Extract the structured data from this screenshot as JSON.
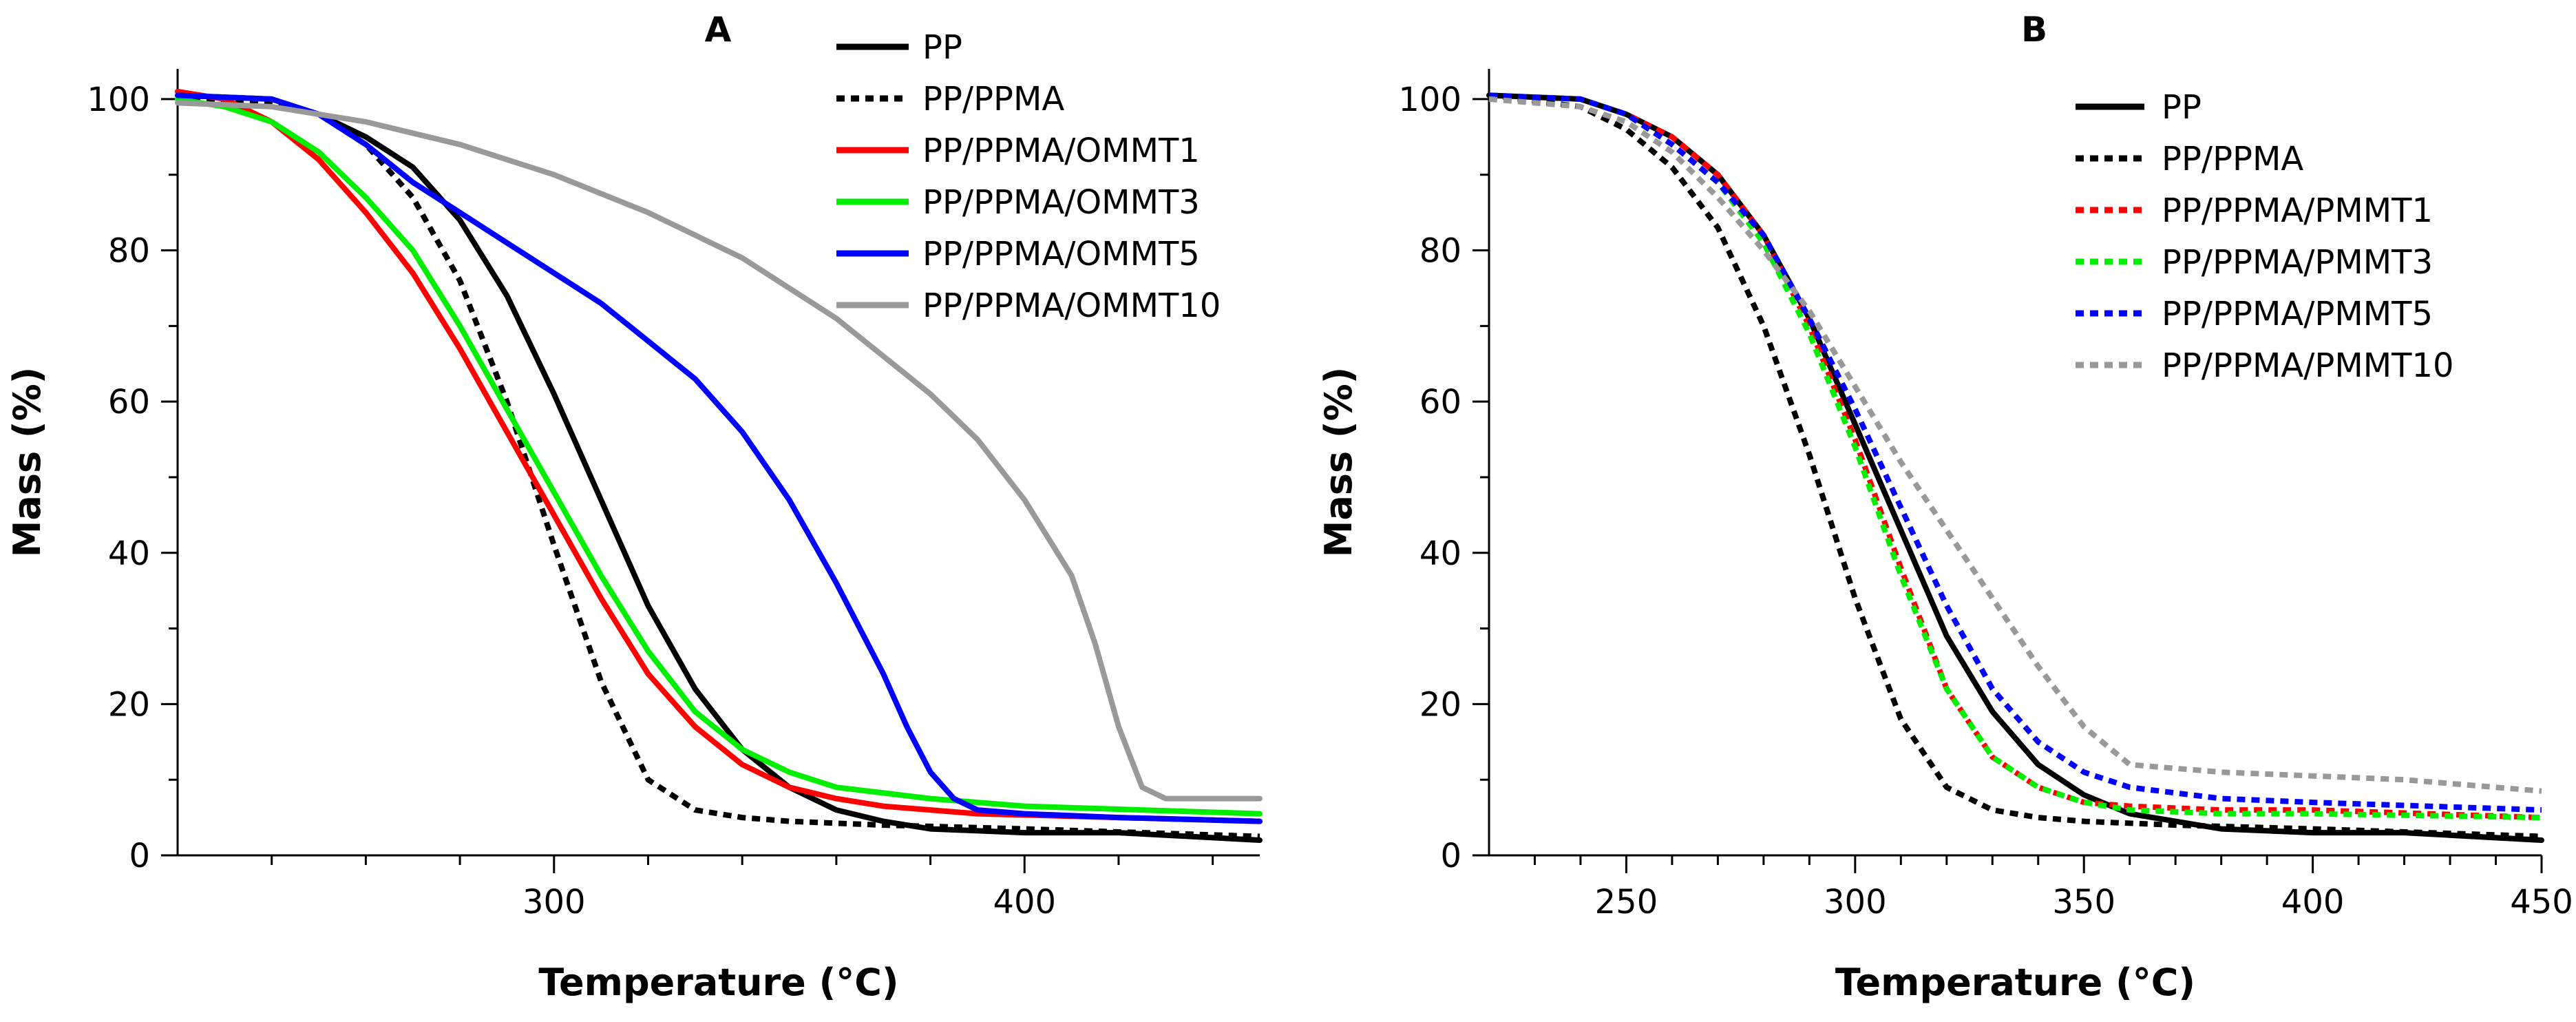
{
  "chart_data": [
    {
      "panel_label": "A",
      "type": "line",
      "xlabel": "Temperature (°C)",
      "ylabel": "Mass (%)",
      "xlim": [
        220,
        450
      ],
      "ylim": [
        0,
        104
      ],
      "xticks": [
        300,
        400
      ],
      "yticks": [
        0,
        20,
        40,
        60,
        80,
        100
      ],
      "grid": false,
      "legend": "top-right",
      "series": [
        {
          "name": "PP",
          "color": "#000000",
          "style": "solid",
          "x": [
            220,
            240,
            250,
            260,
            270,
            280,
            290,
            300,
            310,
            320,
            330,
            340,
            350,
            360,
            370,
            380,
            400,
            420,
            450
          ],
          "y": [
            100.5,
            100,
            98,
            95,
            91,
            84,
            74,
            61,
            47,
            33,
            22,
            14,
            9,
            6,
            4.5,
            3.5,
            3,
            3,
            2
          ]
        },
        {
          "name": "PP/PPMA",
          "color": "#000000",
          "style": "dotted",
          "x": [
            220,
            240,
            250,
            260,
            270,
            280,
            290,
            300,
            310,
            320,
            330,
            340,
            350,
            370,
            400,
            450
          ],
          "y": [
            100,
            99.5,
            98,
            94,
            87,
            76,
            60,
            41,
            23,
            10,
            6,
            5,
            4.5,
            4,
            3.5,
            2.5
          ]
        },
        {
          "name": "PP/PPMA/OMMT1",
          "color": "#ff0000",
          "style": "solid",
          "x": [
            220,
            230,
            240,
            250,
            260,
            270,
            280,
            290,
            300,
            310,
            320,
            330,
            340,
            350,
            360,
            370,
            390,
            420,
            450
          ],
          "y": [
            101,
            100,
            97,
            92,
            85,
            77,
            67,
            56,
            45,
            34,
            24,
            17,
            12,
            9,
            7.5,
            6.5,
            5.5,
            5,
            4.5
          ]
        },
        {
          "name": "PP/PPMA/OMMT3",
          "color": "#00ee00",
          "style": "solid",
          "x": [
            220,
            230,
            240,
            250,
            260,
            270,
            280,
            290,
            300,
            310,
            320,
            330,
            340,
            350,
            360,
            380,
            400,
            450
          ],
          "y": [
            100,
            99,
            97,
            93,
            87,
            80,
            70,
            59,
            48,
            37,
            27,
            19,
            14,
            11,
            9,
            7.5,
            6.5,
            5.5
          ]
        },
        {
          "name": "PP/PPMA/OMMT5",
          "color": "#0000ff",
          "style": "solid",
          "x": [
            220,
            240,
            250,
            260,
            270,
            280,
            290,
            300,
            310,
            320,
            330,
            340,
            350,
            360,
            370,
            375,
            380,
            385,
            390,
            400,
            420,
            450
          ],
          "y": [
            100.5,
            100,
            98,
            94,
            89,
            85,
            81,
            77,
            73,
            68,
            63,
            56,
            47,
            36,
            24,
            17,
            11,
            7.5,
            6,
            5.5,
            5,
            4.5
          ]
        },
        {
          "name": "PP/PPMA/OMMT10",
          "color": "#999999",
          "style": "solid",
          "x": [
            220,
            240,
            260,
            280,
            300,
            320,
            340,
            360,
            380,
            390,
            400,
            410,
            415,
            420,
            425,
            430,
            450
          ],
          "y": [
            99.5,
            99,
            97,
            94,
            90,
            85,
            79,
            71,
            61,
            55,
            47,
            37,
            28,
            17,
            9,
            7.5,
            7.5
          ]
        }
      ]
    },
    {
      "panel_label": "B",
      "type": "line",
      "xlabel": "Temperature (°C)",
      "ylabel": "Mass (%)",
      "xlim": [
        220,
        450
      ],
      "ylim": [
        0,
        104
      ],
      "xticks": [
        250,
        300,
        350,
        400,
        450
      ],
      "yticks": [
        0,
        20,
        40,
        60,
        80,
        100
      ],
      "grid": false,
      "legend": "top-right",
      "series": [
        {
          "name": "PP",
          "color": "#000000",
          "style": "solid",
          "x": [
            220,
            240,
            250,
            260,
            270,
            280,
            290,
            300,
            310,
            320,
            330,
            340,
            350,
            360,
            370,
            380,
            400,
            420,
            450
          ],
          "y": [
            100.5,
            100,
            98,
            95,
            90,
            82,
            71,
            57,
            43,
            29,
            19,
            12,
            8,
            5.5,
            4.5,
            3.5,
            3,
            3,
            2
          ]
        },
        {
          "name": "PP/PPMA",
          "color": "#000000",
          "style": "dotted",
          "x": [
            220,
            240,
            250,
            260,
            270,
            280,
            290,
            300,
            310,
            320,
            330,
            340,
            350,
            370,
            400,
            450
          ],
          "y": [
            100.5,
            99,
            96,
            91,
            83,
            70,
            53,
            34,
            18,
            9,
            6,
            5,
            4.5,
            4,
            3.5,
            2.5
          ]
        },
        {
          "name": "PP/PPMA/PMMT1",
          "color": "#ff0000",
          "style": "dotted",
          "x": [
            220,
            240,
            250,
            260,
            270,
            280,
            290,
            300,
            310,
            320,
            330,
            340,
            350,
            360,
            380,
            400,
            450
          ],
          "y": [
            100.5,
            100,
            98,
            95,
            90,
            82,
            70,
            55,
            38,
            22,
            13,
            9,
            7,
            6.5,
            6,
            6,
            5
          ]
        },
        {
          "name": "PP/PPMA/PMMT3",
          "color": "#00ee00",
          "style": "dotted",
          "x": [
            220,
            240,
            250,
            260,
            270,
            280,
            290,
            300,
            310,
            320,
            330,
            340,
            350,
            360,
            380,
            400,
            450
          ],
          "y": [
            100.5,
            100,
            98,
            94,
            89,
            81,
            69,
            54,
            37,
            22,
            13,
            9,
            7,
            6,
            5.5,
            5.5,
            5
          ]
        },
        {
          "name": "PP/PPMA/PMMT5",
          "color": "#0000ff",
          "style": "dotted",
          "x": [
            220,
            240,
            250,
            260,
            270,
            280,
            290,
            300,
            310,
            320,
            330,
            340,
            350,
            360,
            380,
            400,
            450
          ],
          "y": [
            100.5,
            100,
            98,
            94,
            89,
            82,
            71,
            59,
            46,
            33,
            22,
            15,
            11,
            9,
            7.5,
            7,
            6
          ]
        },
        {
          "name": "PP/PPMA/PMMT10",
          "color": "#999999",
          "style": "dotted",
          "x": [
            220,
            240,
            250,
            260,
            270,
            280,
            290,
            300,
            310,
            320,
            330,
            340,
            350,
            360,
            380,
            400,
            420,
            450
          ],
          "y": [
            100,
            99,
            97,
            93,
            87,
            80,
            72,
            62,
            52,
            43,
            34,
            25,
            17,
            12,
            11,
            10.5,
            10,
            8.5
          ]
        }
      ]
    }
  ]
}
